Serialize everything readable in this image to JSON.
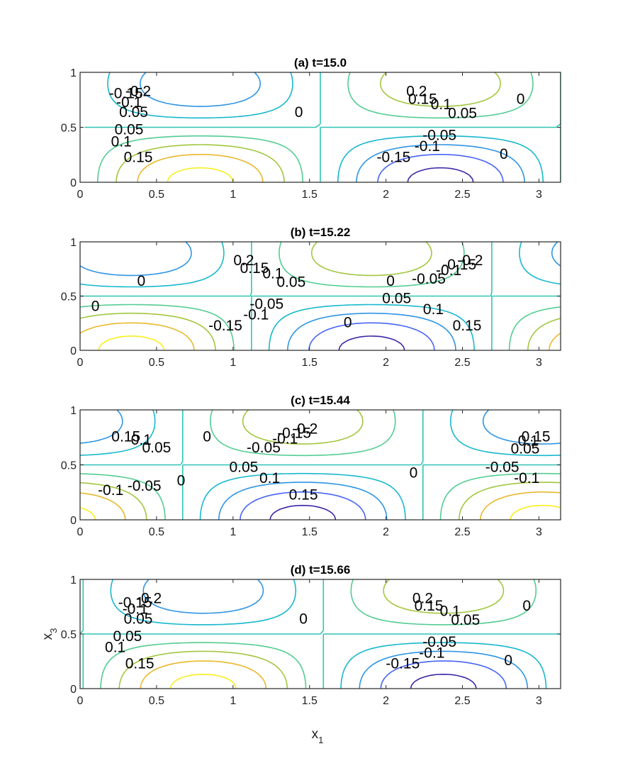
{
  "chart_data": [
    {
      "type": "contour",
      "title": "(a) t=15.0",
      "x_ticks": [
        "0",
        "0.5",
        "1",
        "1.5",
        "2",
        "2.5",
        "3"
      ],
      "y_ticks": [
        "0",
        "0.5",
        "1"
      ],
      "xlim": [
        0,
        3.1416
      ],
      "ylim": [
        0,
        1
      ],
      "levels": [
        -0.2,
        -0.15,
        -0.1,
        -0.05,
        0,
        0.05,
        0.1,
        0.15,
        0.2
      ],
      "phase_shift": 0.0,
      "contour_labels": [
        {
          "text": "-0.2",
          "x": 0.38,
          "y": 0.82
        },
        {
          "text": "-0.15",
          "x": 0.3,
          "y": 0.8
        },
        {
          "text": "-0.1",
          "x": 0.32,
          "y": 0.72
        },
        {
          "text": "0.05",
          "x": 0.35,
          "y": 0.63
        },
        {
          "text": "0.05",
          "x": 0.32,
          "y": 0.47
        },
        {
          "text": "0.1",
          "x": 0.27,
          "y": 0.36
        },
        {
          "text": "0.15",
          "x": 0.38,
          "y": 0.22
        },
        {
          "text": "0",
          "x": 1.43,
          "y": 0.63
        },
        {
          "text": "0.2",
          "x": 2.2,
          "y": 0.82
        },
        {
          "text": "0.15",
          "x": 2.24,
          "y": 0.75
        },
        {
          "text": "0.1",
          "x": 2.36,
          "y": 0.7
        },
        {
          "text": "0.05",
          "x": 2.5,
          "y": 0.62
        },
        {
          "text": "-0.05",
          "x": 2.35,
          "y": 0.42
        },
        {
          "text": "-0.1",
          "x": 2.27,
          "y": 0.32
        },
        {
          "text": "-0.15",
          "x": 2.05,
          "y": 0.22
        },
        {
          "text": "0",
          "x": 2.88,
          "y": 0.75
        },
        {
          "text": "0",
          "x": 2.77,
          "y": 0.25
        }
      ]
    },
    {
      "type": "contour",
      "title": "(b) t=15.22",
      "x_ticks": [
        "0",
        "0.5",
        "1",
        "1.5",
        "2",
        "2.5",
        "3"
      ],
      "y_ticks": [
        "0",
        "0.5",
        "1"
      ],
      "xlim": [
        0,
        3.1416
      ],
      "ylim": [
        0,
        1
      ],
      "levels": [
        -0.2,
        -0.15,
        -0.1,
        -0.05,
        0,
        0.05,
        0.1,
        0.15,
        0.2
      ],
      "phase_shift": -0.45,
      "contour_labels": [
        {
          "text": "0.2",
          "x": 1.07,
          "y": 0.82
        },
        {
          "text": "0.15",
          "x": 1.14,
          "y": 0.75
        },
        {
          "text": "0.1",
          "x": 1.26,
          "y": 0.7
        },
        {
          "text": "0.05",
          "x": 1.38,
          "y": 0.62
        },
        {
          "text": "-0.05",
          "x": 1.22,
          "y": 0.42
        },
        {
          "text": "-0.1",
          "x": 1.15,
          "y": 0.32
        },
        {
          "text": "-0.15",
          "x": 0.95,
          "y": 0.22
        },
        {
          "text": "0",
          "x": 0.4,
          "y": 0.63
        },
        {
          "text": "0",
          "x": 0.1,
          "y": 0.4
        },
        {
          "text": "0",
          "x": 1.75,
          "y": 0.25
        },
        {
          "text": "0",
          "x": 2.03,
          "y": 0.63
        },
        {
          "text": "-0.2",
          "x": 2.55,
          "y": 0.82
        },
        {
          "text": "-0.15",
          "x": 2.48,
          "y": 0.78
        },
        {
          "text": "-0.1",
          "x": 2.41,
          "y": 0.73
        },
        {
          "text": "-0.05",
          "x": 2.28,
          "y": 0.65
        },
        {
          "text": "0.05",
          "x": 2.07,
          "y": 0.47
        },
        {
          "text": "0.1",
          "x": 2.31,
          "y": 0.37
        },
        {
          "text": "0.15",
          "x": 2.53,
          "y": 0.22
        }
      ]
    },
    {
      "type": "contour",
      "title": "(c) t=15.44",
      "x_ticks": [
        "0",
        "0.5",
        "1",
        "1.5",
        "2",
        "2.5",
        "3"
      ],
      "y_ticks": [
        "0",
        "0.5",
        "1"
      ],
      "xlim": [
        0,
        3.1416
      ],
      "ylim": [
        0,
        1
      ],
      "levels": [
        -0.2,
        -0.15,
        -0.1,
        -0.05,
        0,
        0.05,
        0.1,
        0.15,
        0.2
      ],
      "phase_shift": -0.9,
      "contour_labels": [
        {
          "text": "0.15",
          "x": 0.3,
          "y": 0.75
        },
        {
          "text": "0.1",
          "x": 0.4,
          "y": 0.72
        },
        {
          "text": "0.05",
          "x": 0.5,
          "y": 0.65
        },
        {
          "text": "-0.05",
          "x": 0.42,
          "y": 0.3
        },
        {
          "text": "-0.1",
          "x": 0.2,
          "y": 0.26
        },
        {
          "text": "0",
          "x": 0.83,
          "y": 0.75
        },
        {
          "text": "0",
          "x": 0.66,
          "y": 0.35
        },
        {
          "text": "-0.2",
          "x": 1.47,
          "y": 0.82
        },
        {
          "text": "-0.15",
          "x": 1.4,
          "y": 0.78
        },
        {
          "text": "-0.1",
          "x": 1.34,
          "y": 0.73
        },
        {
          "text": "-0.05",
          "x": 1.2,
          "y": 0.65
        },
        {
          "text": "0.05",
          "x": 1.07,
          "y": 0.47
        },
        {
          "text": "0.1",
          "x": 1.24,
          "y": 0.37
        },
        {
          "text": "0.15",
          "x": 1.46,
          "y": 0.22
        },
        {
          "text": "0",
          "x": 2.18,
          "y": 0.42
        },
        {
          "text": "0.15",
          "x": 2.98,
          "y": 0.75
        },
        {
          "text": "0.1",
          "x": 2.93,
          "y": 0.71
        },
        {
          "text": "0.05",
          "x": 2.91,
          "y": 0.64
        },
        {
          "text": "-0.05",
          "x": 2.76,
          "y": 0.47
        },
        {
          "text": "-0.1",
          "x": 2.92,
          "y": 0.37
        }
      ]
    },
    {
      "type": "contour",
      "title": "(d) t=15.66",
      "x_ticks": [
        "0",
        "0.5",
        "1",
        "1.5",
        "2",
        "2.5",
        "3"
      ],
      "y_ticks": [
        "0",
        "0.5",
        "1"
      ],
      "xlim": [
        0,
        3.1416
      ],
      "ylim": [
        0,
        1
      ],
      "levels": [
        -0.2,
        -0.15,
        -0.1,
        -0.05,
        0,
        0.05,
        0.1,
        0.15,
        0.2
      ],
      "phase_shift": 0.02,
      "xlabel": "x_1",
      "ylabel": "x_3",
      "contour_labels": [
        {
          "text": "-0.2",
          "x": 0.45,
          "y": 0.82
        },
        {
          "text": "-0.15",
          "x": 0.36,
          "y": 0.78
        },
        {
          "text": "-0.1",
          "x": 0.36,
          "y": 0.72
        },
        {
          "text": "0.05",
          "x": 0.38,
          "y": 0.63
        },
        {
          "text": "0.05",
          "x": 0.31,
          "y": 0.47
        },
        {
          "text": "0.1",
          "x": 0.23,
          "y": 0.37
        },
        {
          "text": "0.15",
          "x": 0.39,
          "y": 0.22
        },
        {
          "text": "0",
          "x": 1.46,
          "y": 0.63
        },
        {
          "text": "0.2",
          "x": 2.24,
          "y": 0.82
        },
        {
          "text": "0.15",
          "x": 2.28,
          "y": 0.75
        },
        {
          "text": "0.1",
          "x": 2.42,
          "y": 0.7
        },
        {
          "text": "0.05",
          "x": 2.52,
          "y": 0.62
        },
        {
          "text": "-0.05",
          "x": 2.35,
          "y": 0.42
        },
        {
          "text": "-0.1",
          "x": 2.3,
          "y": 0.32
        },
        {
          "text": "-0.15",
          "x": 2.11,
          "y": 0.22
        },
        {
          "text": "0",
          "x": 2.92,
          "y": 0.75
        },
        {
          "text": "0",
          "x": 2.8,
          "y": 0.25
        }
      ]
    }
  ],
  "colors": {
    "-0.2": "#3e26a8",
    "-0.15": "#4664f7",
    "-0.1": "#2d94e4",
    "-0.05": "#16b8cd",
    "0": "#2fc4b5",
    "0.05": "#53cc91",
    "0.1": "#a1c73e",
    "0.15": "#e8b82c",
    "0.2": "#f9ee1f"
  }
}
